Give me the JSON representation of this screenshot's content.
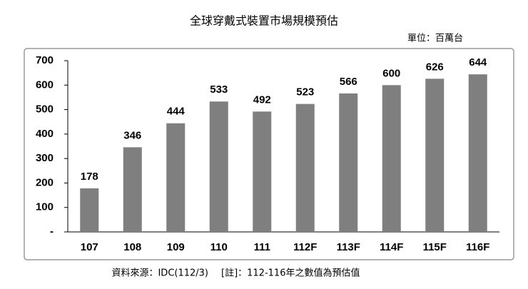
{
  "chart_data": {
    "type": "bar",
    "title": "全球穿戴式裝置市場規模預估",
    "unit": "單位：百萬台",
    "source": "資料來源：IDC(112/3)",
    "note": "[註]：112-116年之數值為預估值",
    "categories": [
      "107",
      "108",
      "109",
      "110",
      "111",
      "112F",
      "113F",
      "114F",
      "115F",
      "116F"
    ],
    "values": [
      178,
      346,
      444,
      533,
      492,
      523,
      566,
      600,
      626,
      644
    ],
    "color": "#7f7f7f",
    "ylim": [
      0,
      700
    ],
    "yticks": [
      {
        "value": 0,
        "label": "-"
      },
      100,
      200,
      300,
      400,
      500,
      600,
      700
    ]
  }
}
